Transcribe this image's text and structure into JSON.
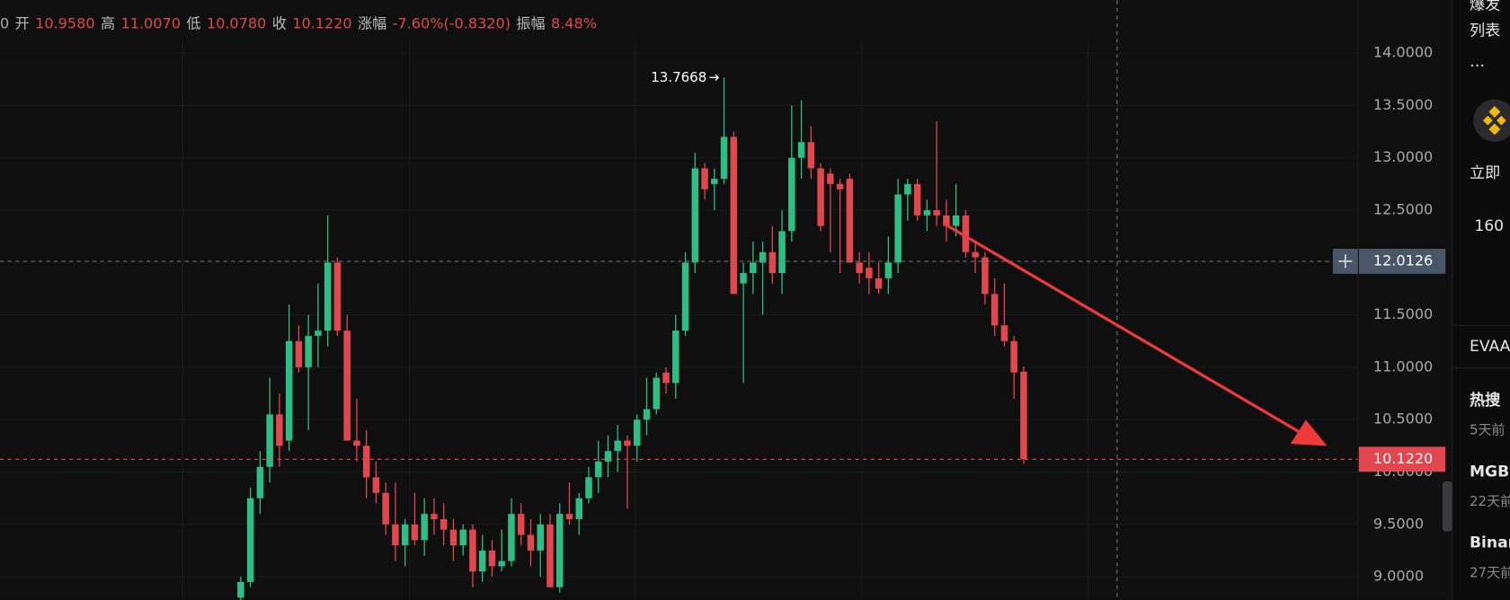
{
  "header": {
    "prefix": "0",
    "fields": [
      {
        "label": "开",
        "value": "10.9580"
      },
      {
        "label": "高",
        "value": "11.0070"
      },
      {
        "label": "低",
        "value": "10.0780"
      },
      {
        "label": "收",
        "value": "10.1220"
      },
      {
        "label": "涨幅",
        "value": "-7.60%(-0.8320)"
      },
      {
        "label": "振幅",
        "value": "8.48%"
      }
    ]
  },
  "chart_data": {
    "type": "candlestick",
    "ylim": [
      8.78,
      14.505
    ],
    "yticks": [
      {
        "value": 9,
        "label": "9.0000"
      },
      {
        "value": 9.5,
        "label": "9.5000"
      },
      {
        "value": 10,
        "label": "10.0000"
      },
      {
        "value": 10.5,
        "label": "10.5000"
      },
      {
        "value": 11,
        "label": "11.0000"
      },
      {
        "value": 11.5,
        "label": "11.5000"
      },
      {
        "value": 12,
        "label": "12.0000"
      },
      {
        "value": 12.5,
        "label": "12.5000"
      },
      {
        "value": 13,
        "label": "13.0000"
      },
      {
        "value": 13.5,
        "label": "13.5000"
      },
      {
        "value": 14,
        "label": "14.0000"
      }
    ],
    "up_color": "#2ebd85",
    "down_color": "#e0474f",
    "high_annotation": 13.7668,
    "crosshair_price": 12.0126,
    "last_price": {
      "value": 10.122,
      "label": "10.1220"
    },
    "candles": [
      [
        8.8,
        9.0,
        8.7,
        8.95
      ],
      [
        8.95,
        9.85,
        8.9,
        9.75
      ],
      [
        9.75,
        10.2,
        9.6,
        10.05
      ],
      [
        10.05,
        10.9,
        9.9,
        10.55
      ],
      [
        10.55,
        10.75,
        10.05,
        10.25
      ],
      [
        10.3,
        11.6,
        10.2,
        11.25
      ],
      [
        11.25,
        11.4,
        10.95,
        11.0
      ],
      [
        11.0,
        11.5,
        10.4,
        11.3
      ],
      [
        11.3,
        11.8,
        11.0,
        11.35
      ],
      [
        11.35,
        12.45,
        11.2,
        12.0
      ],
      [
        12.0,
        12.05,
        11.3,
        11.35
      ],
      [
        11.35,
        11.5,
        10.3,
        10.3
      ],
      [
        10.3,
        10.7,
        10.1,
        10.25
      ],
      [
        10.25,
        10.4,
        9.75,
        9.95
      ],
      [
        9.95,
        10.1,
        9.7,
        9.8
      ],
      [
        9.8,
        9.9,
        9.4,
        9.5
      ],
      [
        9.5,
        9.9,
        9.15,
        9.3
      ],
      [
        9.3,
        9.55,
        9.1,
        9.5
      ],
      [
        9.5,
        9.8,
        9.3,
        9.35
      ],
      [
        9.35,
        9.75,
        9.2,
        9.6
      ],
      [
        9.6,
        9.75,
        9.4,
        9.55
      ],
      [
        9.55,
        9.7,
        9.3,
        9.45
      ],
      [
        9.45,
        9.55,
        9.15,
        9.3
      ],
      [
        9.3,
        9.5,
        9.2,
        9.45
      ],
      [
        9.45,
        9.5,
        8.9,
        9.05
      ],
      [
        9.05,
        9.4,
        8.95,
        9.25
      ],
      [
        9.25,
        9.35,
        9.0,
        9.1
      ],
      [
        9.1,
        9.45,
        9.05,
        9.15
      ],
      [
        9.15,
        9.75,
        9.1,
        9.6
      ],
      [
        9.6,
        9.7,
        9.3,
        9.4
      ],
      [
        9.4,
        9.55,
        9.1,
        9.25
      ],
      [
        9.25,
        9.6,
        9.0,
        9.5
      ],
      [
        9.5,
        9.6,
        8.9,
        8.9
      ],
      [
        8.9,
        9.7,
        8.85,
        9.6
      ],
      [
        9.6,
        9.9,
        9.5,
        9.55
      ],
      [
        9.55,
        9.8,
        9.4,
        9.75
      ],
      [
        9.75,
        10.05,
        9.7,
        9.95
      ],
      [
        9.95,
        10.3,
        9.8,
        10.1
      ],
      [
        10.1,
        10.35,
        9.95,
        10.2
      ],
      [
        10.2,
        10.45,
        10.0,
        10.3
      ],
      [
        10.3,
        10.35,
        9.65,
        10.25
      ],
      [
        10.25,
        10.55,
        10.1,
        10.5
      ],
      [
        10.5,
        10.9,
        10.35,
        10.6
      ],
      [
        10.6,
        10.95,
        10.55,
        10.9
      ],
      [
        10.95,
        11.0,
        10.75,
        10.85
      ],
      [
        10.85,
        11.5,
        10.7,
        11.35
      ],
      [
        11.35,
        12.1,
        11.3,
        12.0
      ],
      [
        12.0,
        13.05,
        11.9,
        12.9
      ],
      [
        12.9,
        12.95,
        12.6,
        12.7
      ],
      [
        12.75,
        12.9,
        12.5,
        12.8
      ],
      [
        12.8,
        13.7668,
        12.75,
        13.2
      ],
      [
        13.2,
        13.25,
        11.7,
        11.7
      ],
      [
        11.8,
        12.0,
        10.85,
        11.9
      ],
      [
        11.9,
        12.2,
        11.7,
        12.0
      ],
      [
        12.0,
        12.2,
        11.5,
        12.1
      ],
      [
        12.1,
        12.35,
        11.8,
        11.9
      ],
      [
        11.9,
        12.5,
        11.7,
        12.3
      ],
      [
        12.3,
        13.5,
        12.2,
        13.0
      ],
      [
        13.0,
        13.55,
        12.8,
        13.15
      ],
      [
        13.15,
        13.3,
        12.8,
        12.9
      ],
      [
        12.9,
        12.95,
        12.3,
        12.35
      ],
      [
        12.85,
        12.9,
        12.1,
        12.75
      ],
      [
        12.75,
        12.8,
        11.9,
        12.7
      ],
      [
        12.8,
        12.85,
        12.0,
        12.0
      ],
      [
        12.0,
        12.1,
        11.8,
        11.9
      ],
      [
        11.95,
        12.1,
        11.7,
        11.85
      ],
      [
        11.85,
        12.0,
        11.7,
        11.75
      ],
      [
        11.85,
        12.25,
        11.7,
        12.0
      ],
      [
        12.0,
        12.8,
        11.9,
        12.65
      ],
      [
        12.65,
        12.8,
        12.4,
        12.75
      ],
      [
        12.75,
        12.8,
        12.4,
        12.45
      ],
      [
        12.45,
        12.6,
        12.3,
        12.5
      ],
      [
        12.5,
        13.35,
        12.35,
        12.45
      ],
      [
        12.45,
        12.6,
        12.2,
        12.35
      ],
      [
        12.35,
        12.75,
        12.25,
        12.45
      ],
      [
        12.45,
        12.5,
        12.05,
        12.1
      ],
      [
        12.1,
        12.2,
        11.9,
        12.05
      ],
      [
        12.05,
        12.1,
        11.6,
        11.7
      ],
      [
        11.7,
        11.85,
        11.3,
        11.4
      ],
      [
        11.4,
        11.8,
        11.2,
        11.25
      ],
      [
        11.25,
        11.3,
        10.7,
        10.95
      ],
      [
        10.958,
        11.007,
        10.078,
        10.122
      ]
    ]
  },
  "sidebar": {
    "lines": [
      "爆发",
      "列表",
      "…",
      "立即",
      "160"
    ],
    "section": "EVAA",
    "news": [
      {
        "title": "热搜",
        "time": "5天前"
      },
      {
        "title": "MGB",
        "time": "22天前"
      },
      {
        "title": "Binar",
        "time": "27天前"
      }
    ]
  }
}
